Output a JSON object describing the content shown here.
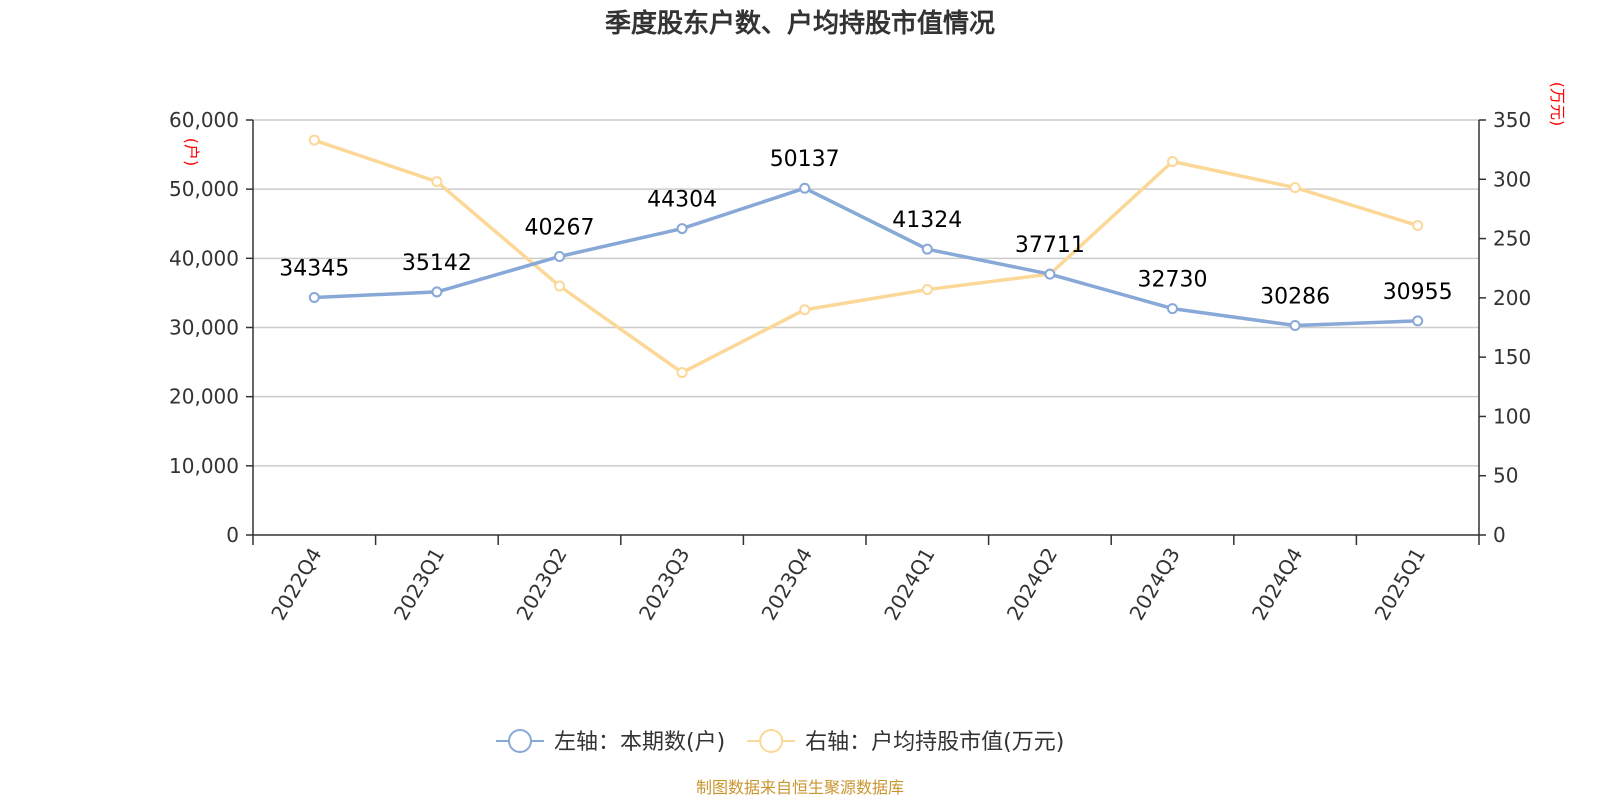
{
  "chart_data": {
    "type": "line",
    "title": "季度股东户数、户均持股市值情况",
    "categories": [
      "2022Q4",
      "2023Q1",
      "2023Q2",
      "2023Q3",
      "2023Q4",
      "2024Q1",
      "2024Q2",
      "2024Q3",
      "2024Q4",
      "2025Q1"
    ],
    "left_axis": {
      "unit": "(户)",
      "ylim": [
        0,
        60000
      ],
      "ticks": [
        "0",
        "10,000",
        "20,000",
        "30,000",
        "40,000",
        "50,000",
        "60,000"
      ]
    },
    "right_axis": {
      "unit": "(万元)",
      "ylim": [
        0,
        350
      ],
      "ticks": [
        "0",
        "50",
        "100",
        "150",
        "200",
        "250",
        "300",
        "350"
      ]
    },
    "series": [
      {
        "name": "左轴：本期数(户)",
        "axis": "left",
        "color": "#88a8d8",
        "values": [
          34345,
          35142,
          40267,
          44304,
          50137,
          41324,
          37711,
          32730,
          30286,
          30955
        ],
        "labels": [
          "34345",
          "35142",
          "40267",
          "44304",
          "50137",
          "41324",
          "37711",
          "32730",
          "30286",
          "30955"
        ]
      },
      {
        "name": "右轴：户均持股市值(万元)",
        "axis": "right",
        "color": "#fcd898",
        "values": [
          333,
          298,
          210,
          137,
          190,
          207,
          220,
          315,
          293,
          261
        ]
      }
    ],
    "grid": true,
    "legend": "bottom-center",
    "source": "制图数据来自恒生聚源数据库"
  }
}
